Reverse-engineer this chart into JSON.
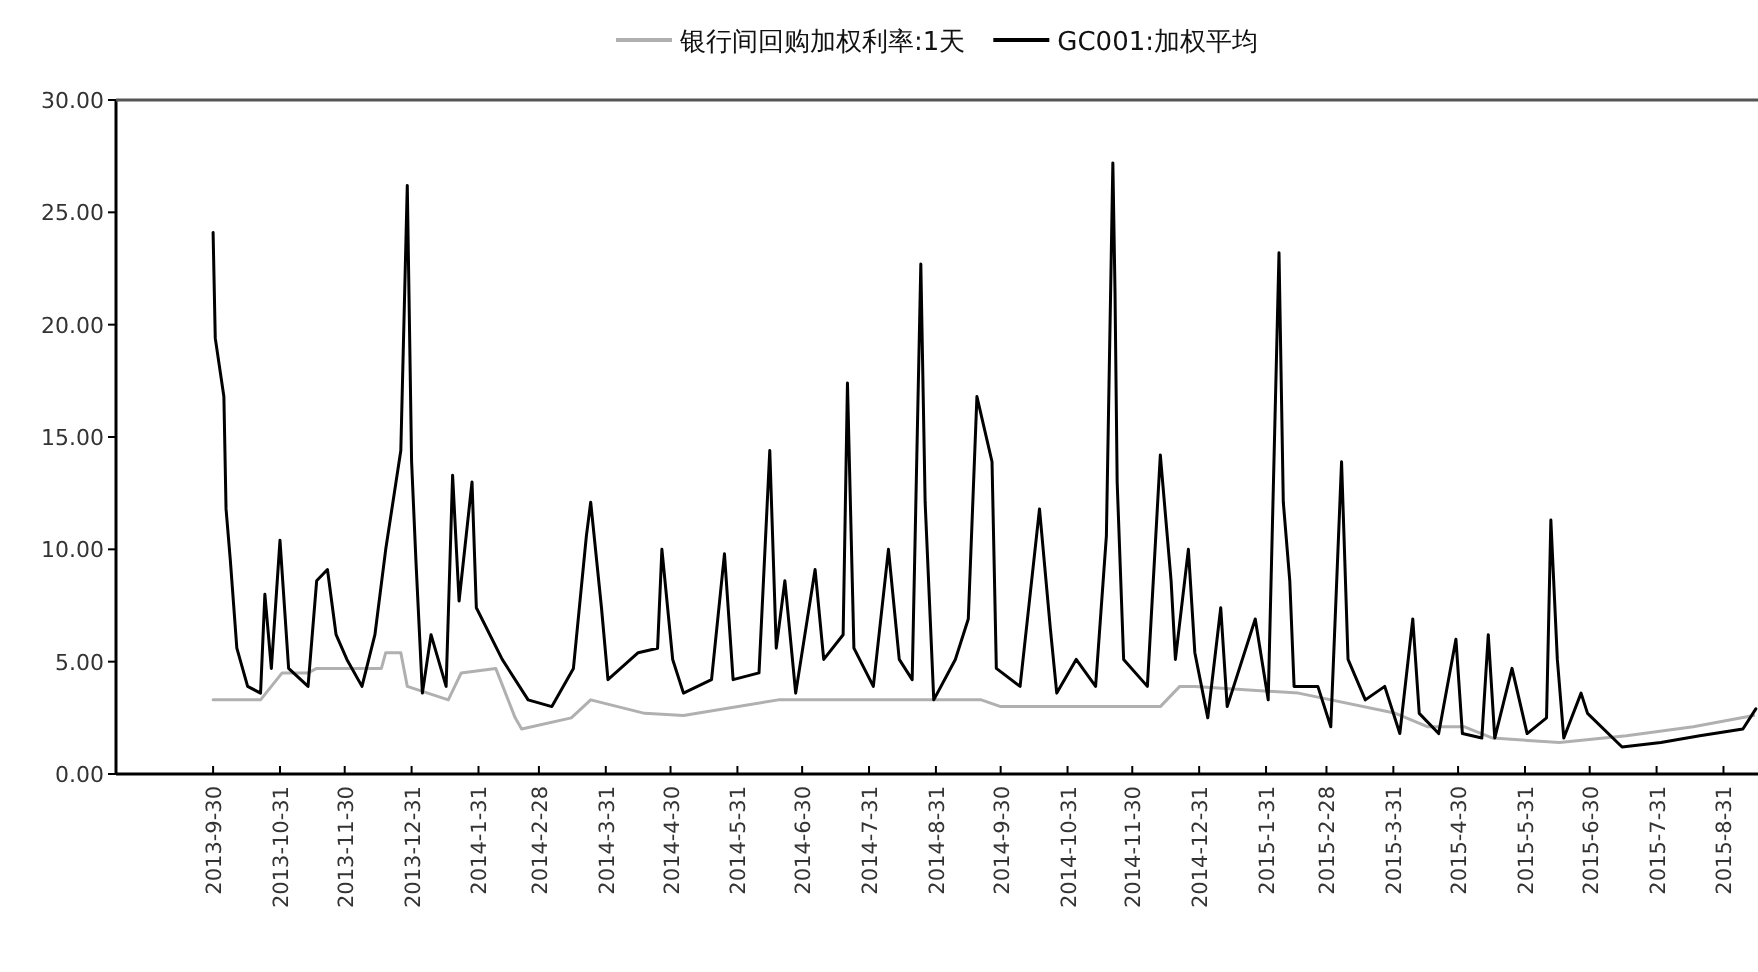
{
  "chart_data": {
    "type": "line",
    "legend": "top",
    "marker": "none",
    "line_style": "solid",
    "xlim": [
      "2013-08-16",
      "2015-09-16"
    ],
    "ylim": [
      0,
      30
    ],
    "yticks": [
      {
        "value": 0,
        "label": "0.00"
      },
      {
        "value": 5,
        "label": "5.00"
      },
      {
        "value": 10,
        "label": "10.00"
      },
      {
        "value": 15,
        "label": "15.00"
      },
      {
        "value": 20,
        "label": "20.00"
      },
      {
        "value": 25,
        "label": "25.00"
      },
      {
        "value": 30,
        "label": "30.00"
      }
    ],
    "xticks": [
      {
        "value": "2013-09-30",
        "label": "2013-9-30"
      },
      {
        "value": "2013-10-31",
        "label": "2013-10-31"
      },
      {
        "value": "2013-11-30",
        "label": "2013-11-30"
      },
      {
        "value": "2013-12-31",
        "label": "2013-12-31"
      },
      {
        "value": "2014-01-31",
        "label": "2014-1-31"
      },
      {
        "value": "2014-02-28",
        "label": "2014-2-28"
      },
      {
        "value": "2014-03-31",
        "label": "2014-3-31"
      },
      {
        "value": "2014-04-30",
        "label": "2014-4-30"
      },
      {
        "value": "2014-05-31",
        "label": "2014-5-31"
      },
      {
        "value": "2014-06-30",
        "label": "2014-6-30"
      },
      {
        "value": "2014-07-31",
        "label": "2014-7-31"
      },
      {
        "value": "2014-08-31",
        "label": "2014-8-31"
      },
      {
        "value": "2014-09-30",
        "label": "2014-9-30"
      },
      {
        "value": "2014-10-31",
        "label": "2014-10-31"
      },
      {
        "value": "2014-11-30",
        "label": "2014-11-30"
      },
      {
        "value": "2014-12-31",
        "label": "2014-12-31"
      },
      {
        "value": "2015-01-31",
        "label": "2015-1-31"
      },
      {
        "value": "2015-02-28",
        "label": "2015-2-28"
      },
      {
        "value": "2015-03-31",
        "label": "2015-3-31"
      },
      {
        "value": "2015-04-30",
        "label": "2015-4-30"
      },
      {
        "value": "2015-05-31",
        "label": "2015-5-31"
      },
      {
        "value": "2015-06-30",
        "label": "2015-6-30"
      },
      {
        "value": "2015-07-31",
        "label": "2015-7-31"
      },
      {
        "value": "2015-08-31",
        "label": "2015-8-31"
      }
    ],
    "series": [
      {
        "name": "银行间回购加权利率:1天",
        "color": "#b0b0b0",
        "x": [
          "2013-09-30",
          "2013-10-22",
          "2013-11-01",
          "2013-11-13",
          "2013-11-17",
          "2013-12-17",
          "2013-12-19",
          "2013-12-26",
          "2013-12-29",
          "2014-01-17",
          "2014-01-23",
          "2014-02-08",
          "2014-02-17",
          "2014-02-20",
          "2014-03-15",
          "2014-03-24",
          "2014-04-18",
          "2014-05-06",
          "2014-06-19",
          "2014-09-21",
          "2014-09-30",
          "2014-12-13",
          "2014-12-22",
          "2014-12-29",
          "2015-02-15",
          "2015-04-01",
          "2015-04-16",
          "2015-05-03",
          "2015-05-16",
          "2015-06-16",
          "2015-07-17",
          "2015-08-17",
          "2015-09-14"
        ],
        "values": [
          3.3,
          3.3,
          4.5,
          4.5,
          4.7,
          4.7,
          5.4,
          5.4,
          3.9,
          3.3,
          4.5,
          4.7,
          2.5,
          2.0,
          2.5,
          3.3,
          2.7,
          2.6,
          3.3,
          3.3,
          3.0,
          3.0,
          3.9,
          3.9,
          3.6,
          2.7,
          2.1,
          2.1,
          1.6,
          1.4,
          1.7,
          2.1,
          2.6
        ]
      },
      {
        "name": "GC001:加权平均",
        "color": "#000000",
        "x": [
          "2013-09-30",
          "2013-10-01",
          "2013-10-05",
          "2013-10-06",
          "2013-10-08",
          "2013-10-11",
          "2013-10-16",
          "2013-10-22",
          "2013-10-24",
          "2013-10-27",
          "2013-10-31",
          "2013-11-04",
          "2013-11-13",
          "2013-11-17",
          "2013-11-22",
          "2013-11-26",
          "2013-12-01",
          "2013-12-08",
          "2013-12-14",
          "2013-12-19",
          "2013-12-26",
          "2013-12-29",
          "2013-12-31",
          "2014-01-02",
          "2014-01-05",
          "2014-01-09",
          "2014-01-16",
          "2014-01-19",
          "2014-01-22",
          "2014-01-28",
          "2014-01-30",
          "2014-02-11",
          "2014-02-23",
          "2014-03-06",
          "2014-03-16",
          "2014-03-22",
          "2014-03-24",
          "2014-03-29",
          "2014-04-01",
          "2014-04-15",
          "2014-04-24",
          "2014-04-26",
          "2014-05-01",
          "2014-05-06",
          "2014-05-19",
          "2014-05-25",
          "2014-05-29",
          "2014-06-10",
          "2014-06-15",
          "2014-06-18",
          "2014-06-22",
          "2014-06-27",
          "2014-07-06",
          "2014-07-10",
          "2014-07-19",
          "2014-07-21",
          "2014-07-24",
          "2014-08-02",
          "2014-08-09",
          "2014-08-14",
          "2014-08-20",
          "2014-08-24",
          "2014-08-26",
          "2014-08-30",
          "2014-09-09",
          "2014-09-15",
          "2014-09-19",
          "2014-09-26",
          "2014-09-28",
          "2014-10-09",
          "2014-10-18",
          "2014-10-23",
          "2014-10-26",
          "2014-11-04",
          "2014-11-13",
          "2014-11-18",
          "2014-11-21",
          "2014-11-22",
          "2014-11-23",
          "2014-11-26",
          "2014-12-07",
          "2014-12-13",
          "2014-12-18",
          "2014-12-20",
          "2014-12-26",
          "2014-12-29",
          "2015-01-04",
          "2015-01-10",
          "2015-01-13",
          "2015-01-26",
          "2015-02-01",
          "2015-02-06",
          "2015-02-08",
          "2015-02-11",
          "2015-02-13",
          "2015-02-24",
          "2015-03-02",
          "2015-03-07",
          "2015-03-10",
          "2015-03-18",
          "2015-03-27",
          "2015-04-03",
          "2015-04-09",
          "2015-04-12",
          "2015-04-21",
          "2015-04-29",
          "2015-05-02",
          "2015-05-11",
          "2015-05-14",
          "2015-05-17",
          "2015-05-25",
          "2015-06-01",
          "2015-06-10",
          "2015-06-12",
          "2015-06-15",
          "2015-06-18",
          "2015-06-26",
          "2015-06-29",
          "2015-07-15",
          "2015-08-02",
          "2015-08-20",
          "2015-09-09",
          "2015-09-15"
        ],
        "values": [
          24.1,
          19.4,
          16.8,
          11.8,
          9.5,
          5.6,
          3.9,
          3.6,
          8.0,
          4.7,
          10.4,
          4.7,
          3.9,
          8.6,
          9.1,
          6.2,
          5.1,
          3.9,
          6.2,
          10.0,
          14.4,
          26.2,
          13.9,
          9.5,
          3.6,
          6.2,
          3.9,
          13.3,
          7.7,
          13.0,
          7.4,
          5.1,
          3.3,
          3.0,
          4.7,
          10.6,
          12.1,
          7.4,
          4.2,
          5.4,
          5.6,
          10.0,
          5.1,
          3.6,
          4.2,
          9.8,
          4.2,
          4.5,
          14.4,
          5.6,
          8.6,
          3.6,
          9.1,
          5.1,
          6.2,
          17.4,
          5.6,
          3.9,
          10.0,
          5.1,
          4.2,
          22.7,
          12.1,
          3.3,
          5.1,
          6.9,
          16.8,
          13.9,
          4.7,
          3.9,
          11.8,
          6.5,
          3.6,
          5.1,
          3.9,
          10.6,
          27.2,
          21.5,
          13.0,
          5.1,
          3.9,
          14.2,
          8.6,
          5.1,
          10.0,
          5.4,
          2.5,
          7.4,
          3.0,
          6.9,
          3.3,
          23.2,
          12.1,
          8.6,
          3.9,
          3.9,
          2.1,
          13.9,
          5.1,
          3.3,
          3.9,
          1.8,
          6.9,
          2.7,
          1.8,
          6.0,
          1.8,
          1.6,
          6.2,
          1.6,
          4.7,
          1.8,
          2.5,
          11.3,
          5.1,
          1.6,
          3.6,
          2.7,
          1.2,
          1.4,
          1.7,
          2.0,
          2.9
        ]
      }
    ]
  }
}
